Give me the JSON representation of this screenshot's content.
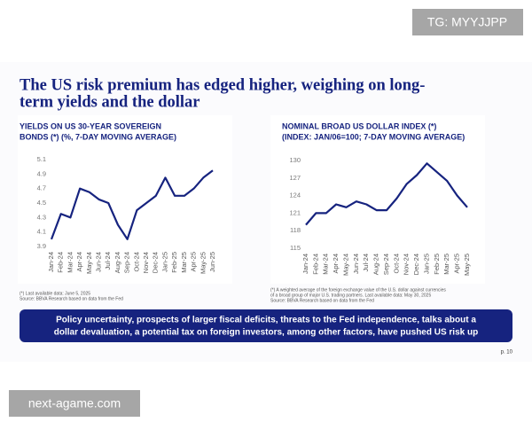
{
  "watermark_tg": "TG: MYYJJPP",
  "watermark_site": "next-agame.com",
  "slide_title": [
    "The US risk premium has edged higher, weighing on long-",
    "term yields and the dollar"
  ],
  "chart_data": [
    {
      "type": "line",
      "title": [
        "YIELDS ON US 30-YEAR SOVEREIGN",
        "BONDS (*) (%, 7-DAY MOVING AVERAGE)"
      ],
      "categories": [
        "Jan-24",
        "Feb-24",
        "Mar-24",
        "Apr-24",
        "May-24",
        "Jun-24",
        "Jul-24",
        "Aug-24",
        "Sep-24",
        "Oct-24",
        "Nov-24",
        "Dec-24",
        "Jan-25",
        "Feb-25",
        "Mar-25",
        "Apr-25",
        "May-25",
        "Jun-25"
      ],
      "series": [
        {
          "name": "30-year yield",
          "color": "#16237f",
          "values": [
            4.0,
            4.35,
            4.3,
            4.7,
            4.65,
            4.55,
            4.5,
            4.2,
            4.0,
            4.4,
            4.5,
            4.6,
            4.85,
            4.6,
            4.6,
            4.7,
            4.85,
            4.95
          ]
        }
      ],
      "ylim": [
        3.9,
        5.1
      ],
      "yticks": [
        3.9,
        4.1,
        4.3,
        4.5,
        4.7,
        4.9,
        5.1
      ],
      "footnotes": [
        "(*) Last available data: June 5, 2025",
        "Source: BBVA Research based on data from the Fed"
      ]
    },
    {
      "type": "line",
      "title": [
        "NOMINAL BROAD US DOLLAR INDEX (*)",
        "(INDEX: JAN/06=100; 7-DAY MOVING AVERAGE)"
      ],
      "categories": [
        "Jan-24",
        "Feb-24",
        "Mar-24",
        "Apr-24",
        "May-24",
        "Jun-24",
        "Jul-24",
        "Aug-24",
        "Sep-24",
        "Oct-24",
        "Nov-24",
        "Dec-24",
        "Jan-25",
        "Feb-25",
        "Mar-25",
        "Apr-25",
        "May-25"
      ],
      "series": [
        {
          "name": "Dollar index",
          "color": "#16237f",
          "values": [
            119,
            121,
            121,
            122.5,
            122,
            123,
            122.5,
            121.5,
            121.5,
            123.5,
            126,
            127.5,
            129.5,
            128,
            126.5,
            124,
            122
          ]
        }
      ],
      "ylim": [
        115,
        130
      ],
      "yticks": [
        115,
        118,
        121,
        124,
        127,
        130
      ],
      "footnotes": [
        "(*) A weighted average of the foreign exchange value of the U.S. dollar against currencies",
        "of a broad group of major U.S. trading partners. Last available data: May 30, 2025",
        "Source: BBVA Research based on data from the Fed"
      ]
    }
  ],
  "banner": [
    "Policy uncertainty, prospects of larger fiscal deficits, threats to the Fed independence, talks about a",
    "dollar devaluation, a potential tax on foreign investors, among other factors, have pushed US risk up"
  ],
  "page": "p. 10"
}
